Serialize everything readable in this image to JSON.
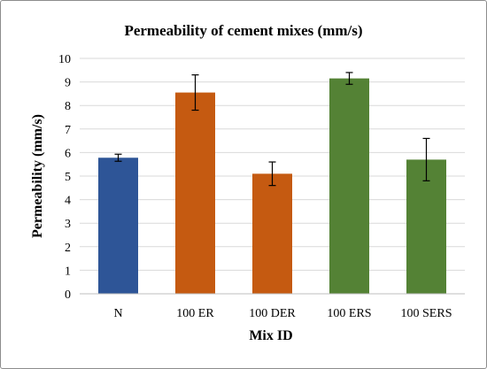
{
  "chart_data": {
    "type": "bar",
    "title": "Permeability of cement mixes (mm/s)",
    "xlabel": "Mix ID",
    "ylabel": "Permeability (mm/s)",
    "categories": [
      "N",
      "100 ER",
      "100 DER",
      "100 ERS",
      "100 SERS"
    ],
    "values": [
      5.78,
      8.55,
      5.1,
      9.15,
      5.7
    ],
    "error": [
      0.15,
      0.75,
      0.5,
      0.25,
      0.9
    ],
    "colors": [
      "#2e5597",
      "#c55a11",
      "#c55a11",
      "#548235",
      "#548235"
    ],
    "ylim": [
      0,
      10
    ],
    "yticks": [
      "0",
      "1",
      "2",
      "3",
      "4",
      "5",
      "6",
      "7",
      "8",
      "9",
      "10"
    ],
    "grid": true
  }
}
